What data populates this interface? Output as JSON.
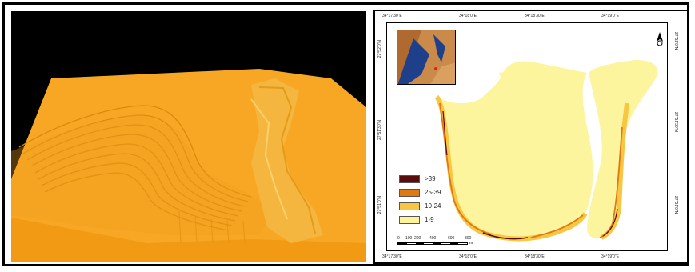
{
  "legend": {
    "items": [
      {
        "label": ">39",
        "color": "#5a0b0b"
      },
      {
        "label": "25-39",
        "color": "#e07a10"
      },
      {
        "label": "10-24",
        "color": "#f7c744"
      },
      {
        "label": "1-9",
        "color": "#fcf39a"
      }
    ]
  },
  "scale": {
    "labels": [
      "0",
      "100",
      "200",
      "400",
      "600",
      "800"
    ],
    "unit": "m"
  },
  "coords": {
    "top": [
      "34°17'30\"E",
      "34°18'0\"E",
      "34°18'30\"E",
      "34°19'0\"E"
    ],
    "bottom": [
      "34°17'30\"E",
      "34°18'0\"E",
      "34°18'30\"E",
      "34°19'0\"E"
    ],
    "left": [
      "27°52'0\"N",
      "27°51'30\"N",
      "27°51'0\"N"
    ],
    "right": [
      "27°52'0\"N",
      "27°51'30\"N",
      "27°51'0\"N"
    ]
  },
  "colors": {
    "terrain_fill": "#f6a51e",
    "terrain_top": "#f7a723",
    "terrain_shade": "#d98a0e",
    "map_base": "#fdf49e",
    "background_3d": "#000000"
  },
  "icons": {
    "north_arrow": "north-arrow-icon",
    "inset": "inset-locator-map"
  }
}
